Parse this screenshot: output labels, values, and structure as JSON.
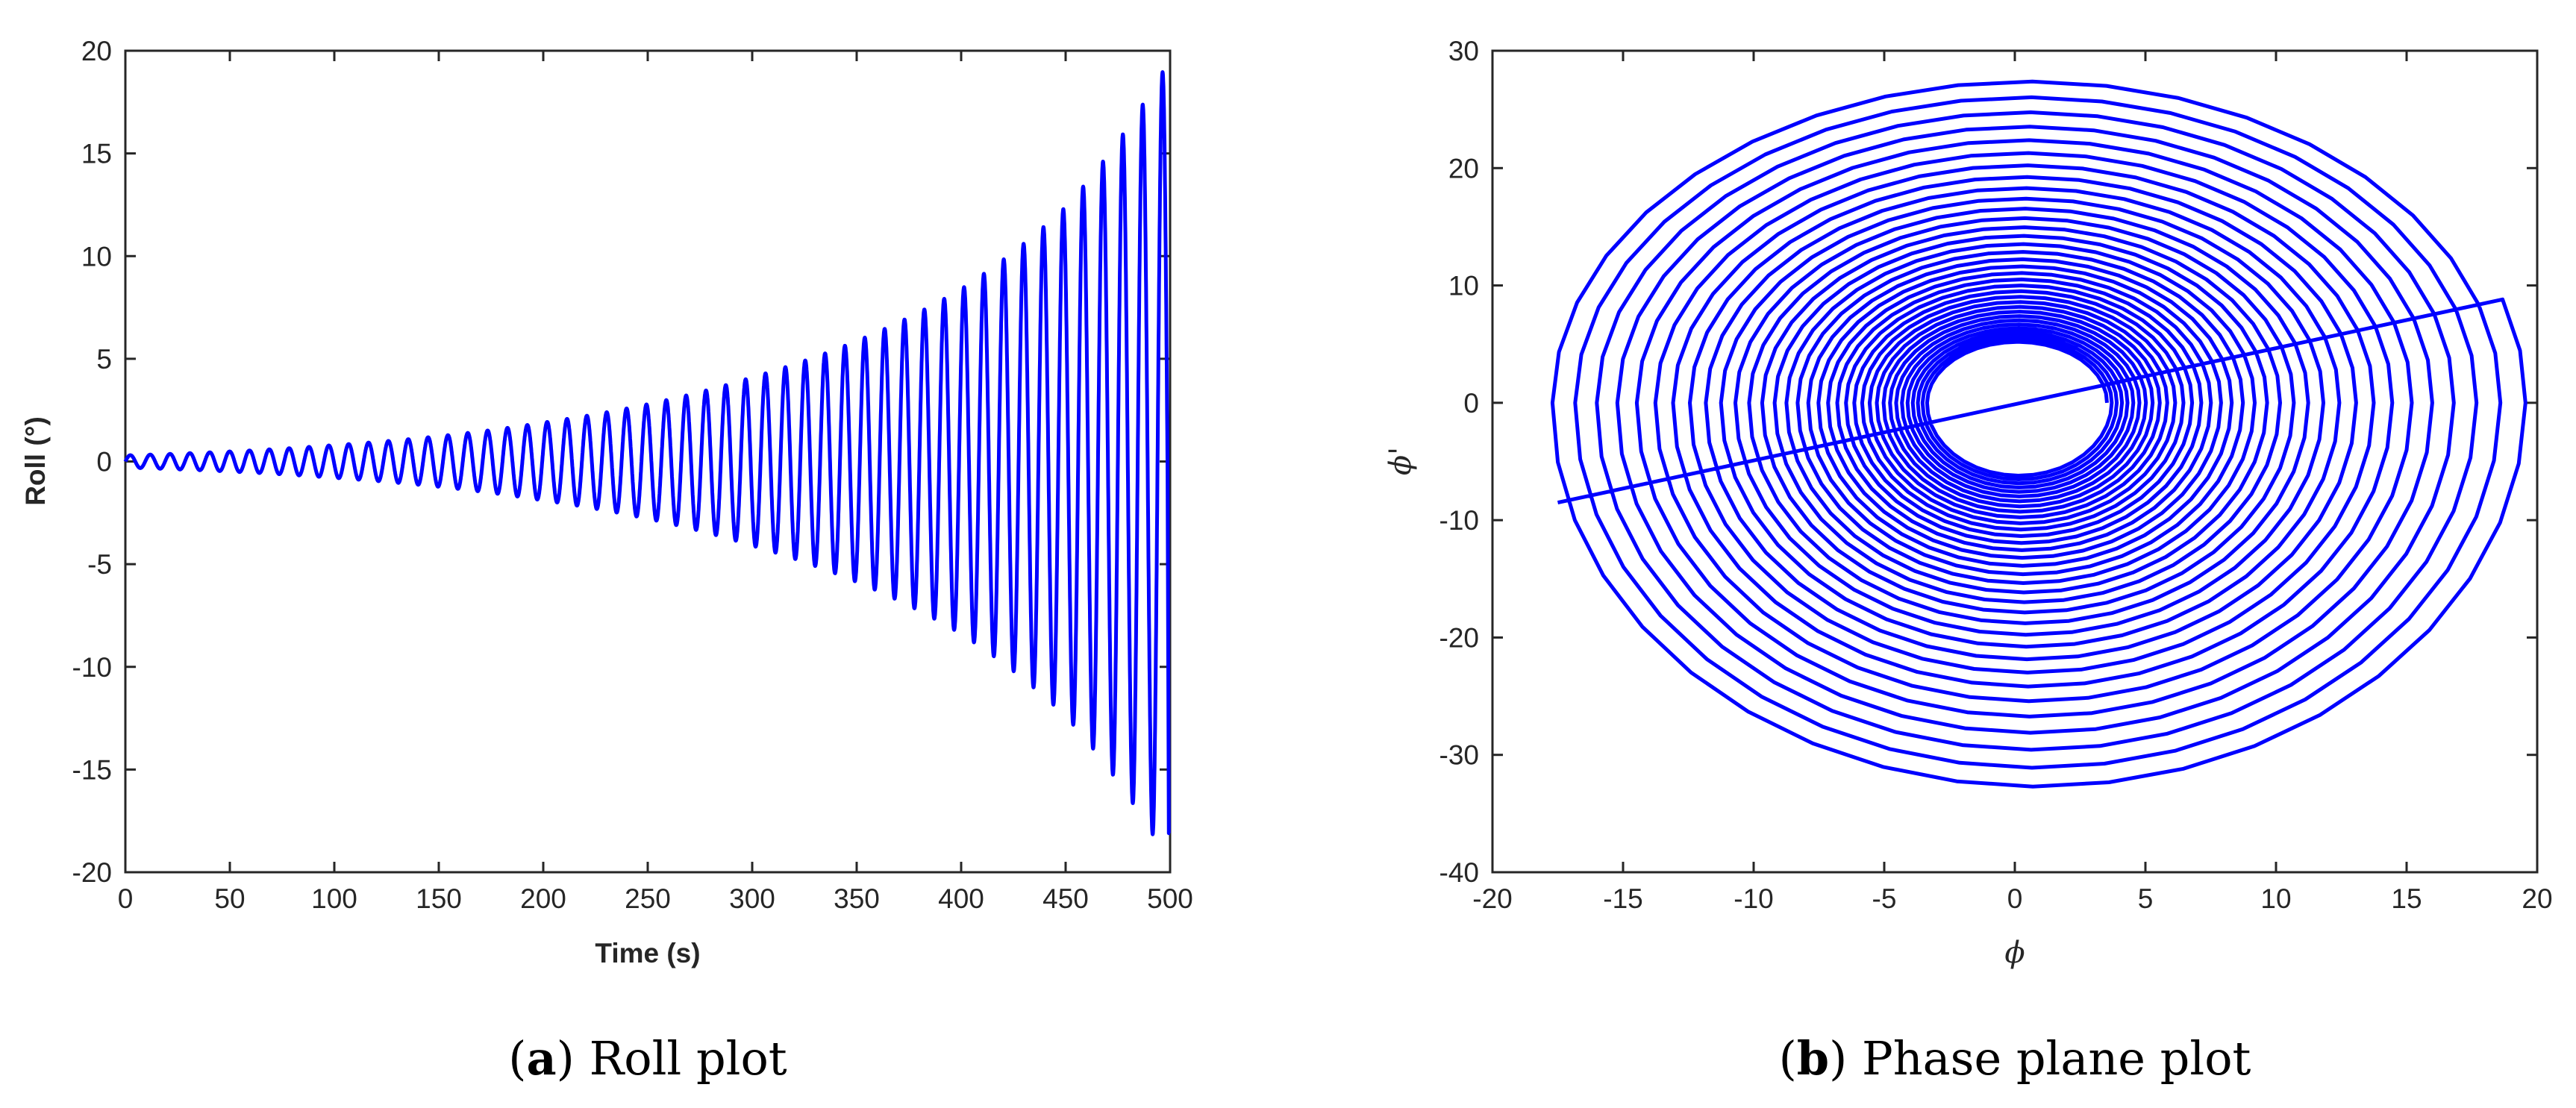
{
  "chart_data": [
    {
      "type": "line",
      "xlabel": "Time (s)",
      "ylabel": "Roll (°)",
      "xlim": [
        0,
        500
      ],
      "ylim": [
        -20,
        20
      ],
      "xticks": [
        "0",
        "50",
        "100",
        "150",
        "200",
        "250",
        "300",
        "350",
        "400",
        "450",
        "500"
      ],
      "yticks": [
        "20",
        "15",
        "10",
        "5",
        "0",
        "-5",
        "-10",
        "-15",
        "-20"
      ],
      "grid": false,
      "legend": "none",
      "color": "#0000ff",
      "series": [
        {
          "period_s": 9.5,
          "amplitude_envelope": [
            {
              "t": 0,
              "amp": 0.3
            },
            {
              "t": 100,
              "amp": 0.8
            },
            {
              "t": 200,
              "amp": 1.9
            },
            {
              "t": 300,
              "amp": 4.1
            },
            {
              "t": 400,
              "amp": 8.4
            },
            {
              "t": 450,
              "amp": 12.4
            },
            {
              "t": 500,
              "amp": 19.6
            }
          ],
          "end_value": -18.1
        }
      ],
      "caption_label": "a",
      "caption_text": "Roll plot"
    },
    {
      "type": "line",
      "xlabel": "ϕ",
      "ylabel": "ϕ'",
      "xlim": [
        -20,
        20
      ],
      "ylim": [
        -40,
        30
      ],
      "xticks": [
        "-20",
        "-15",
        "-10",
        "-5",
        "0",
        "5",
        "10",
        "15",
        "20"
      ],
      "yticks": [
        "30",
        "20",
        "10",
        "0",
        "-10",
        "-20",
        "-30",
        "-40"
      ],
      "grid": false,
      "legend": "none",
      "color": "#0000ff",
      "series": [
        {
          "shape": "spiral",
          "turns": 34,
          "center": [
            0,
            0
          ],
          "outer_extent": {
            "x_min": -18.2,
            "x_max": 19.6,
            "y_min": -33.2,
            "y_max": 28.5
          },
          "end_point": [
            -17.5,
            -8.5
          ]
        }
      ],
      "caption_label": "b",
      "caption_text": "Phase plane plot"
    }
  ]
}
